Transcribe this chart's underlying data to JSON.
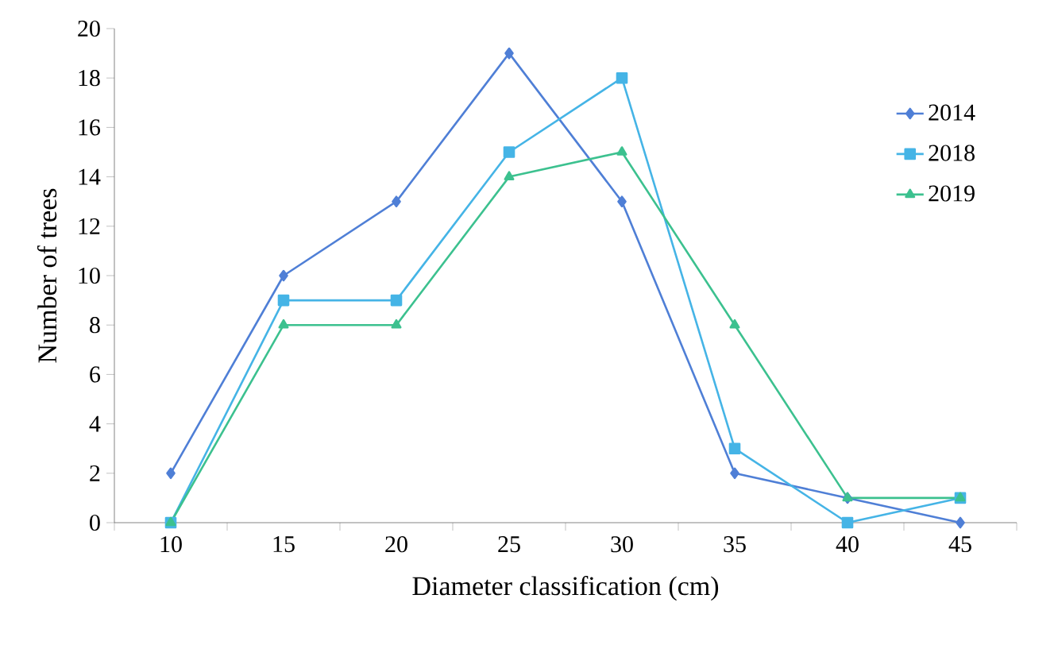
{
  "chart_data": {
    "type": "line",
    "xlabel": "Diameter classification (cm)",
    "ylabel": "Number of trees",
    "categories": [
      "10",
      "15",
      "20",
      "25",
      "30",
      "35",
      "40",
      "45"
    ],
    "series": [
      {
        "name": "2014",
        "color": "#4f7fd6",
        "marker": "diamond",
        "values": [
          2,
          10,
          13,
          19,
          13,
          2,
          1,
          0
        ]
      },
      {
        "name": "2018",
        "color": "#45b4e6",
        "marker": "square",
        "values": [
          0,
          9,
          9,
          15,
          18,
          3,
          0,
          1
        ]
      },
      {
        "name": "2019",
        "color": "#3cc18f",
        "marker": "triangle",
        "values": [
          0,
          8,
          8,
          14,
          15,
          8,
          1,
          1
        ]
      }
    ],
    "ylim": [
      0,
      20
    ],
    "yticks": [
      0,
      2,
      4,
      6,
      8,
      10,
      12,
      14,
      16,
      18,
      20
    ],
    "grid": false,
    "legend": "top right",
    "line_style": "solid"
  }
}
